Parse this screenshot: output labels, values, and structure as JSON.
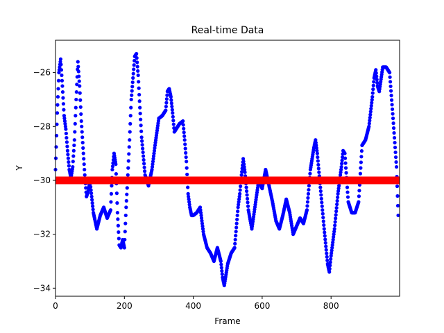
{
  "chart_data": {
    "type": "scatter",
    "title": "Real-time Data",
    "xlabel": "Frame",
    "ylabel": "Y",
    "xlim": [
      0,
      999
    ],
    "ylim": [
      -34.3,
      -24.8
    ],
    "xticks": [
      0,
      200,
      400,
      600,
      800
    ],
    "yticks": [
      -34,
      -32,
      -30,
      -28,
      -26
    ],
    "grid": false,
    "series": [
      {
        "color": "#0000ff",
        "marker": "dot",
        "x": [
          0,
          5,
          10,
          15,
          20,
          25,
          30,
          35,
          40,
          45,
          50,
          55,
          60,
          65,
          70,
          75,
          80,
          85,
          90,
          95,
          100,
          110,
          120,
          130,
          140,
          150,
          160,
          165,
          170,
          175,
          180,
          185,
          190,
          195,
          200,
          205,
          210,
          215,
          220,
          225,
          230,
          235,
          240,
          245,
          250,
          255,
          260,
          270,
          280,
          290,
          300,
          310,
          320,
          325,
          330,
          335,
          340,
          345,
          350,
          360,
          370,
          375,
          380,
          385,
          390,
          395,
          400,
          410,
          420,
          430,
          440,
          450,
          460,
          470,
          480,
          485,
          490,
          500,
          510,
          520,
          530,
          535,
          540,
          545,
          550,
          560,
          570,
          580,
          590,
          600,
          610,
          620,
          630,
          640,
          650,
          660,
          670,
          680,
          690,
          700,
          710,
          720,
          730,
          740,
          750,
          755,
          760,
          770,
          780,
          790,
          795,
          800,
          810,
          820,
          830,
          835,
          840,
          850,
          860,
          870,
          880,
          890,
          900,
          910,
          920,
          925,
          930,
          935,
          940,
          950,
          960,
          970,
          980,
          990,
          995
        ],
        "y": [
          -29.6,
          -27.5,
          -26.0,
          -25.5,
          -26.5,
          -27.6,
          -28.1,
          -28.9,
          -29.6,
          -29.9,
          -29.5,
          -28.5,
          -27.0,
          -25.6,
          -26.5,
          -27.8,
          -28.8,
          -29.8,
          -30.6,
          -30.4,
          -30.0,
          -31.2,
          -31.8,
          -31.3,
          -31.0,
          -31.4,
          -31.1,
          -29.6,
          -29.0,
          -29.4,
          -31.2,
          -32.4,
          -32.5,
          -32.2,
          -32.5,
          -31.0,
          -29.8,
          -28.5,
          -27.0,
          -26.2,
          -25.4,
          -25.3,
          -26.1,
          -27.3,
          -28.4,
          -29.1,
          -29.8,
          -30.2,
          -29.6,
          -28.6,
          -27.7,
          -27.6,
          -27.4,
          -26.7,
          -26.6,
          -26.9,
          -27.5,
          -28.2,
          -28.1,
          -27.9,
          -27.8,
          -28.5,
          -29.3,
          -30.5,
          -31.0,
          -31.3,
          -31.3,
          -31.2,
          -31.0,
          -32.0,
          -32.5,
          -32.7,
          -33.0,
          -32.5,
          -33.0,
          -33.6,
          -33.9,
          -33.1,
          -32.7,
          -32.5,
          -31.0,
          -30.5,
          -29.8,
          -29.2,
          -29.7,
          -31.1,
          -31.8,
          -30.9,
          -30.0,
          -30.3,
          -29.6,
          -30.2,
          -30.8,
          -31.5,
          -31.8,
          -31.3,
          -30.7,
          -31.2,
          -32.0,
          -31.7,
          -31.4,
          -31.6,
          -31.1,
          -29.6,
          -28.8,
          -28.5,
          -29.0,
          -30.4,
          -31.8,
          -33.1,
          -33.4,
          -32.8,
          -31.8,
          -30.5,
          -29.5,
          -28.9,
          -29.0,
          -30.8,
          -31.2,
          -31.2,
          -30.8,
          -28.7,
          -28.5,
          -28.0,
          -26.9,
          -26.2,
          -25.9,
          -26.5,
          -26.7,
          -25.8,
          -25.8,
          -26.0,
          -27.7,
          -29.5,
          -31.3
        ]
      },
      {
        "color": "#ff0000",
        "marker": "thick line",
        "x": [
          0,
          999
        ],
        "y": [
          -30.0,
          -30.0
        ]
      }
    ]
  }
}
